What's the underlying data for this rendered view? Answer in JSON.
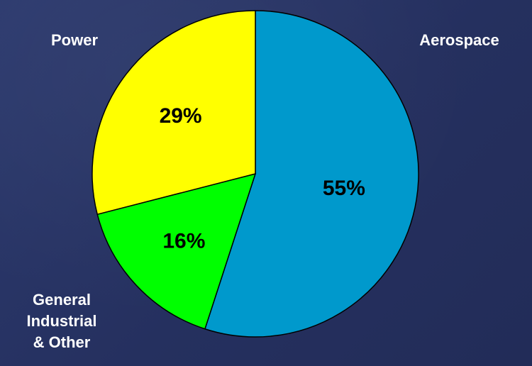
{
  "chart_data": {
    "type": "pie",
    "title": "",
    "slices": [
      {
        "label": "Aerospace",
        "value": 55,
        "value_label": "55%",
        "color": "#0099cc"
      },
      {
        "label": "General\nIndustrial\n& Other",
        "value": 16,
        "value_label": "16%",
        "color": "#00ff00"
      },
      {
        "label": "Power",
        "value": 29,
        "value_label": "29%",
        "color": "#ffff00"
      }
    ],
    "start_angle": "12 o'clock",
    "direction": "clockwise",
    "legend": "none"
  }
}
